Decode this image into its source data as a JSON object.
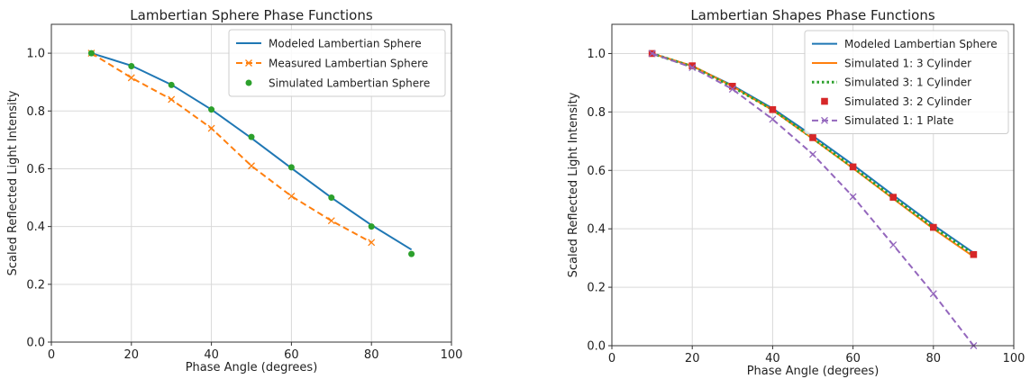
{
  "chart_data": [
    {
      "type": "line",
      "title": "Lambertian Sphere Phase Functions",
      "xlabel": "Phase Angle (degrees)",
      "ylabel": "Scaled Reflected Light Intensity",
      "xlim": [
        0,
        100
      ],
      "ylim": [
        0,
        1.1
      ],
      "xticks": [
        "0",
        "20",
        "40",
        "60",
        "80",
        "100"
      ],
      "yticks": [
        "0.0",
        "0.2",
        "0.4",
        "0.6",
        "0.8",
        "1.0"
      ],
      "grid": true,
      "legend": "top-right",
      "series": [
        {
          "name": "Modeled Lambertian Sphere",
          "style": "solid",
          "marker": "none",
          "color": "#1f77b4",
          "x": [
            10,
            20,
            30,
            40,
            50,
            60,
            70,
            80,
            90
          ],
          "y": [
            1.0,
            0.957,
            0.891,
            0.805,
            0.706,
            0.602,
            0.5,
            0.405,
            0.32
          ]
        },
        {
          "name": "Measured Lambertian Sphere",
          "style": "dashed",
          "marker": "x",
          "color": "#ff7f0e",
          "x": [
            10,
            20,
            30,
            40,
            50,
            60,
            70,
            80
          ],
          "y": [
            1.0,
            0.915,
            0.84,
            0.74,
            0.61,
            0.505,
            0.42,
            0.345
          ]
        },
        {
          "name": "Simulated Lambertian Sphere",
          "style": "none",
          "marker": "circle",
          "color": "#2ca02c",
          "x": [
            10,
            20,
            30,
            40,
            50,
            60,
            70,
            80,
            90
          ],
          "y": [
            1.0,
            0.955,
            0.89,
            0.805,
            0.71,
            0.605,
            0.5,
            0.4,
            0.305
          ]
        }
      ]
    },
    {
      "type": "line",
      "title": "Lambertian Shapes Phase Functions",
      "xlabel": "Phase Angle (degrees)",
      "ylabel": "Scaled Reflected Light Intensity",
      "xlim": [
        0,
        100
      ],
      "ylim": [
        0,
        1.1
      ],
      "xticks": [
        "0",
        "20",
        "40",
        "60",
        "80",
        "100"
      ],
      "yticks": [
        "0.0",
        "0.2",
        "0.4",
        "0.6",
        "0.8",
        "1.0"
      ],
      "grid": true,
      "legend": "top-right",
      "series": [
        {
          "name": "Modeled Lambertian Sphere",
          "style": "solid",
          "marker": "none",
          "color": "#1f77b4",
          "x": [
            10,
            20,
            30,
            40,
            50,
            60,
            70,
            80,
            90
          ],
          "y": [
            1.0,
            0.957,
            0.891,
            0.812,
            0.718,
            0.619,
            0.515,
            0.413,
            0.318
          ]
        },
        {
          "name": "Simulated 1: 3 Cylinder",
          "style": "solid",
          "marker": "none",
          "color": "#ff7f0e",
          "x": [
            10,
            20,
            30,
            40,
            50,
            60,
            70,
            80,
            90
          ],
          "y": [
            1.0,
            0.958,
            0.888,
            0.806,
            0.708,
            0.607,
            0.503,
            0.4,
            0.305
          ]
        },
        {
          "name": "Simulated 3: 1 Cylinder",
          "style": "dotted",
          "marker": "none",
          "color": "#2ca02c",
          "x": [
            10,
            20,
            30,
            40,
            50,
            60,
            70,
            80,
            90
          ],
          "y": [
            1.0,
            0.955,
            0.886,
            0.808,
            0.71,
            0.61,
            0.507,
            0.405,
            0.312
          ]
        },
        {
          "name": "Simulated 3: 2 Cylinder",
          "style": "none",
          "marker": "square",
          "color": "#d62728",
          "x": [
            10,
            20,
            30,
            40,
            50,
            60,
            70,
            80,
            90
          ],
          "y": [
            1.0,
            0.958,
            0.888,
            0.808,
            0.712,
            0.612,
            0.508,
            0.405,
            0.312
          ]
        },
        {
          "name": "Simulated 1: 1 Plate",
          "style": "dashed",
          "marker": "x",
          "color": "#9467bd",
          "x": [
            10,
            20,
            30,
            40,
            50,
            60,
            70,
            80,
            90
          ],
          "y": [
            1.0,
            0.952,
            0.878,
            0.775,
            0.655,
            0.51,
            0.345,
            0.178,
            0.0
          ]
        }
      ]
    }
  ]
}
